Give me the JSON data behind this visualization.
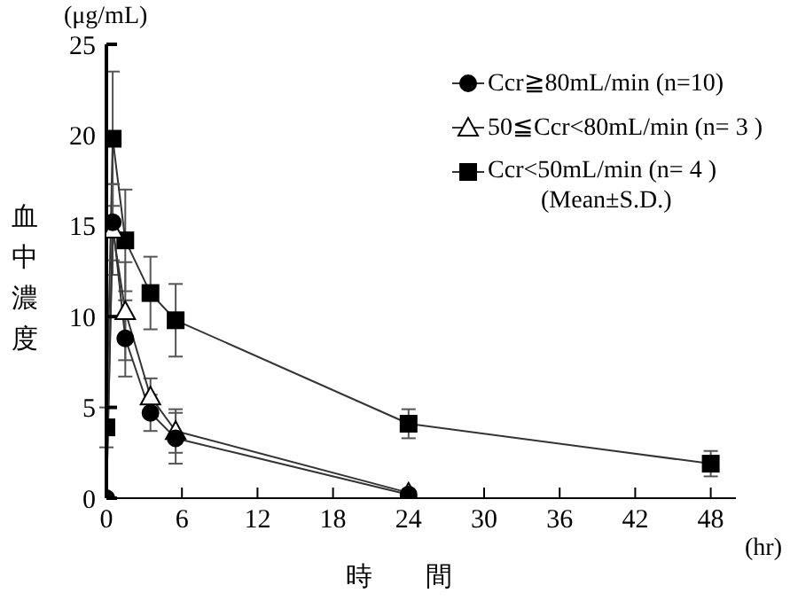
{
  "chart_data": {
    "type": "line",
    "xlabel": "時　　間",
    "ylabel": "血中濃度",
    "annotations": [
      "(μg/mL)",
      "(hr)",
      "(Mean±S.D.)"
    ],
    "xlim": [
      0,
      50
    ],
    "xticks": [
      0,
      6,
      12,
      18,
      24,
      30,
      36,
      42,
      48
    ],
    "ylim": [
      0,
      25
    ],
    "yticks": [
      0,
      5,
      10,
      15,
      20,
      25
    ],
    "grid": false,
    "legend": "top right",
    "series": [
      {
        "name": "Ccr≧80mL/min (n=10)",
        "color": "#000000",
        "marker": "circle",
        "x": [
          0,
          0.5,
          1.5,
          3.5,
          5.5,
          24
        ],
        "values": [
          0,
          15.2,
          8.8,
          4.7,
          3.3,
          0.2
        ],
        "errors": [
          null,
          2.1,
          2.1,
          1.0,
          1.4,
          null
        ]
      },
      {
        "name": "50≦Ccr<80mL/min (n= 3 )",
        "color": "#ffffff",
        "marker": "triangle",
        "x": [
          0,
          0.5,
          1.5,
          3.5,
          5.5,
          24
        ],
        "values": [
          0,
          14.8,
          10.3,
          5.6,
          3.7,
          0.3
        ],
        "errors": [
          null,
          2.5,
          2.7,
          1.0,
          1.2,
          null
        ]
      },
      {
        "name": "Ccr<50mL/min (n= 4 )",
        "color": "#000000",
        "marker": "square",
        "x": [
          0,
          0.5,
          1.5,
          3.5,
          5.5,
          24,
          48
        ],
        "values": [
          3.9,
          19.8,
          14.2,
          11.3,
          9.8,
          4.1,
          1.9
        ],
        "errors": [
          1.1,
          3.7,
          2.8,
          2.0,
          2.0,
          0.8,
          0.7
        ]
      }
    ]
  }
}
